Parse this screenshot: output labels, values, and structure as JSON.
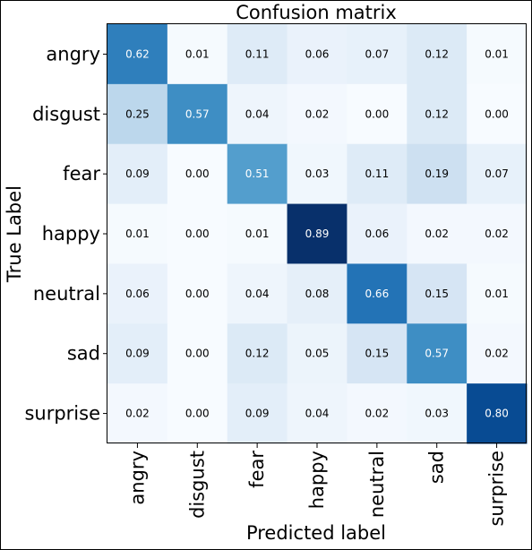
{
  "chart_data": {
    "type": "heatmap",
    "title": "Confusion matrix",
    "xlabel": "Predicted label",
    "ylabel": "True Label",
    "x_categories": [
      "angry",
      "disgust",
      "fear",
      "happy",
      "neutral",
      "sad",
      "surprise"
    ],
    "y_categories": [
      "angry",
      "disgust",
      "fear",
      "happy",
      "neutral",
      "sad",
      "surprise"
    ],
    "values": [
      [
        0.62,
        0.01,
        0.11,
        0.06,
        0.07,
        0.12,
        0.01
      ],
      [
        0.25,
        0.57,
        0.04,
        0.02,
        0.0,
        0.12,
        0.0
      ],
      [
        0.09,
        0.0,
        0.51,
        0.03,
        0.11,
        0.19,
        0.07
      ],
      [
        0.01,
        0.0,
        0.01,
        0.89,
        0.06,
        0.02,
        0.02
      ],
      [
        0.06,
        0.0,
        0.04,
        0.08,
        0.66,
        0.15,
        0.01
      ],
      [
        0.09,
        0.0,
        0.12,
        0.05,
        0.15,
        0.57,
        0.02
      ],
      [
        0.02,
        0.0,
        0.09,
        0.04,
        0.02,
        0.03,
        0.8
      ]
    ],
    "colormap": "Blues",
    "value_range": [
      0,
      0.89
    ]
  }
}
